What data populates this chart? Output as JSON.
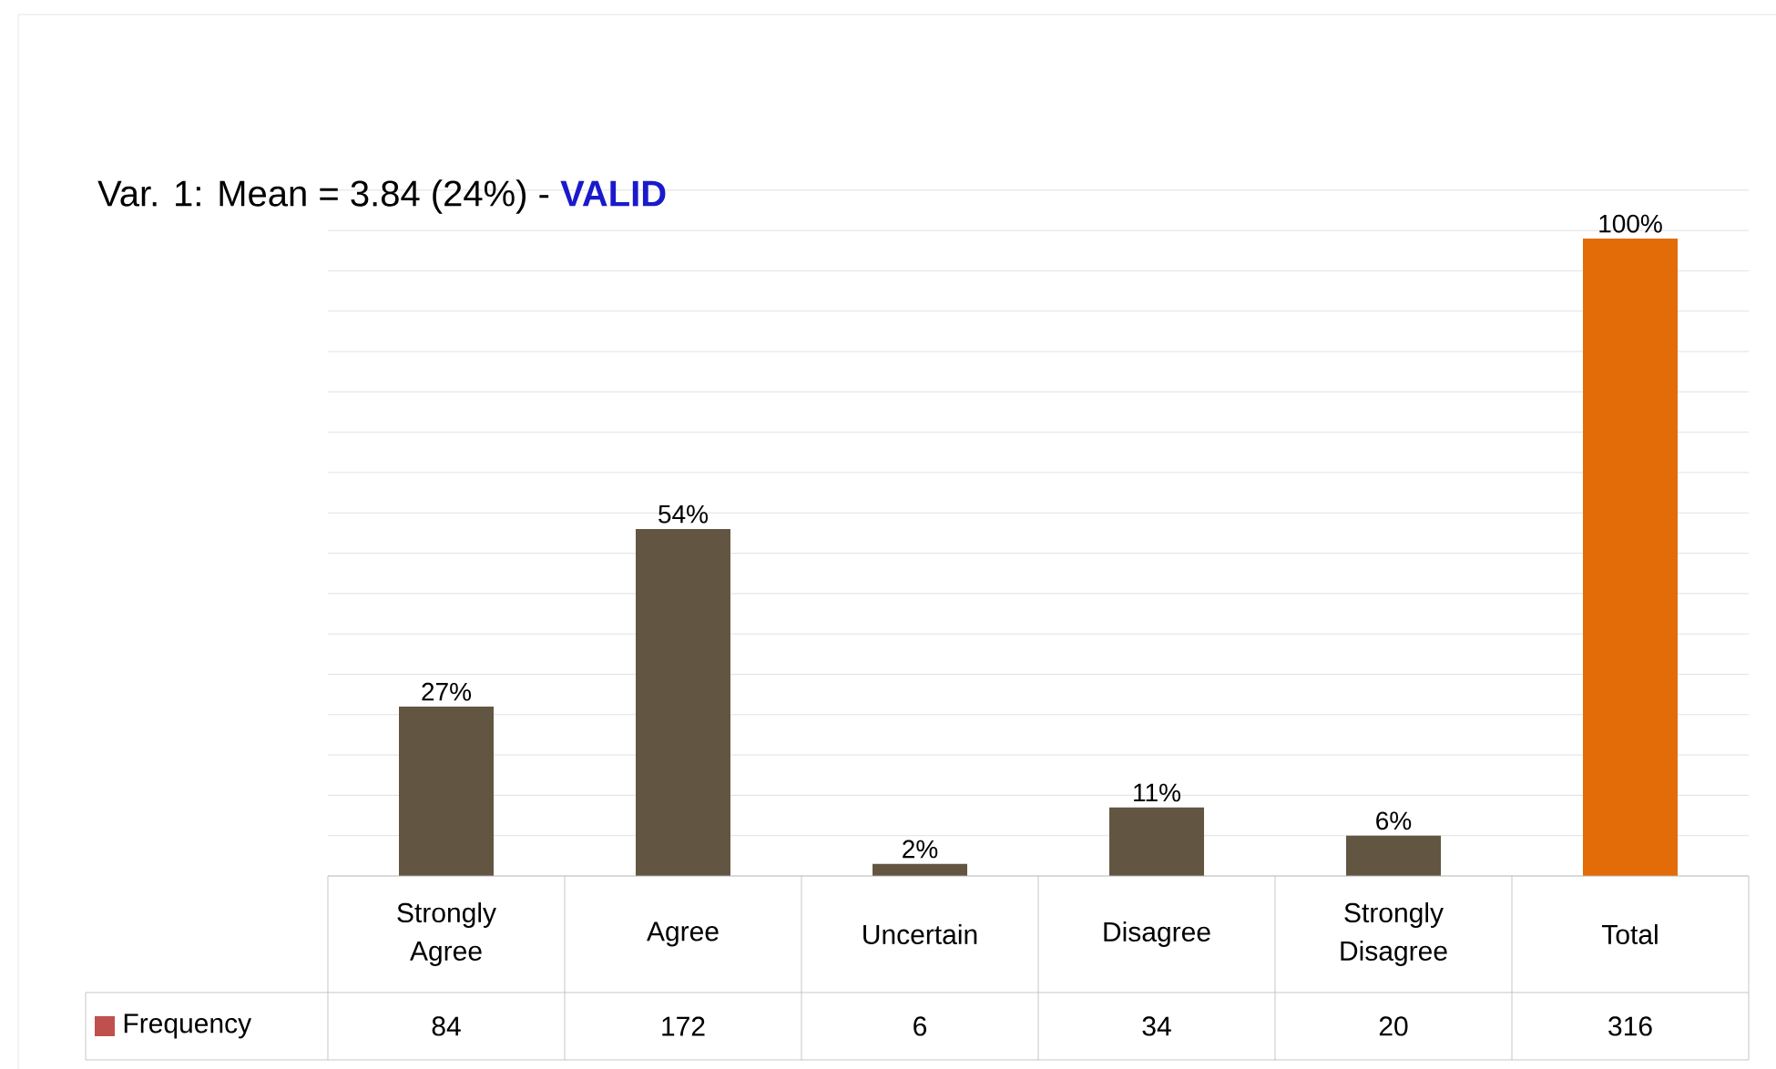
{
  "chart_data": {
    "type": "bar",
    "title": "Var. 1: Mean = 3.84 (24%) - **VALID**",
    "categories": [
      "Strongly Agree",
      "Agree",
      "Uncertain",
      "Disagree",
      "Strongly Disagree",
      "Total"
    ],
    "series": [
      {
        "name": "Frequency",
        "color": "#c0504d",
        "values": [
          84,
          172,
          6,
          34,
          20,
          316
        ],
        "colors": [
          "#625643",
          "#625643",
          "#625643",
          "#625643",
          "#625643",
          "#e36c09"
        ]
      }
    ],
    "annotations": [
      {
        "text": "27%",
        "x": "Strongly Agree",
        "y": 84
      },
      {
        "text": "54%",
        "x": "Agree",
        "y": 172
      },
      {
        "text": "2%",
        "x": "Uncertain",
        "y": 6
      },
      {
        "text": "11%",
        "x": "Disagree",
        "y": 34
      },
      {
        "text": "6%",
        "x": "Strongly Disagree",
        "y": 20
      },
      {
        "text": "100%",
        "x": "Total",
        "y": 316
      }
    ],
    "data_labels": true,
    "tick_labels": "x",
    "grid": "y",
    "legend": "bottom"
  }
}
